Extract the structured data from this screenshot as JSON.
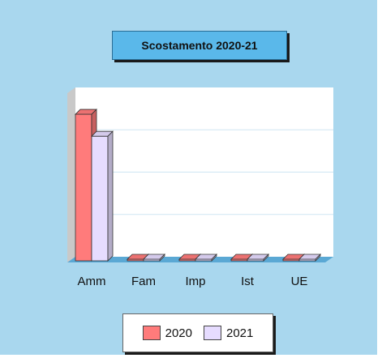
{
  "chart_data": {
    "type": "bar",
    "title": "Scostamento 2020-21",
    "categories": [
      "Amm",
      "Fam",
      "Imp",
      "Ist",
      "UE"
    ],
    "series": [
      {
        "name": "2020",
        "color": "#ff7b7b",
        "values": [
          1.0,
          0,
          0,
          0,
          0
        ]
      },
      {
        "name": "2021",
        "color": "#e6dcff",
        "values": [
          0.85,
          0,
          0,
          0,
          0
        ]
      }
    ],
    "ylim": [
      0,
      1.05
    ],
    "grid": true,
    "legend": "bottom",
    "style": "3d"
  }
}
